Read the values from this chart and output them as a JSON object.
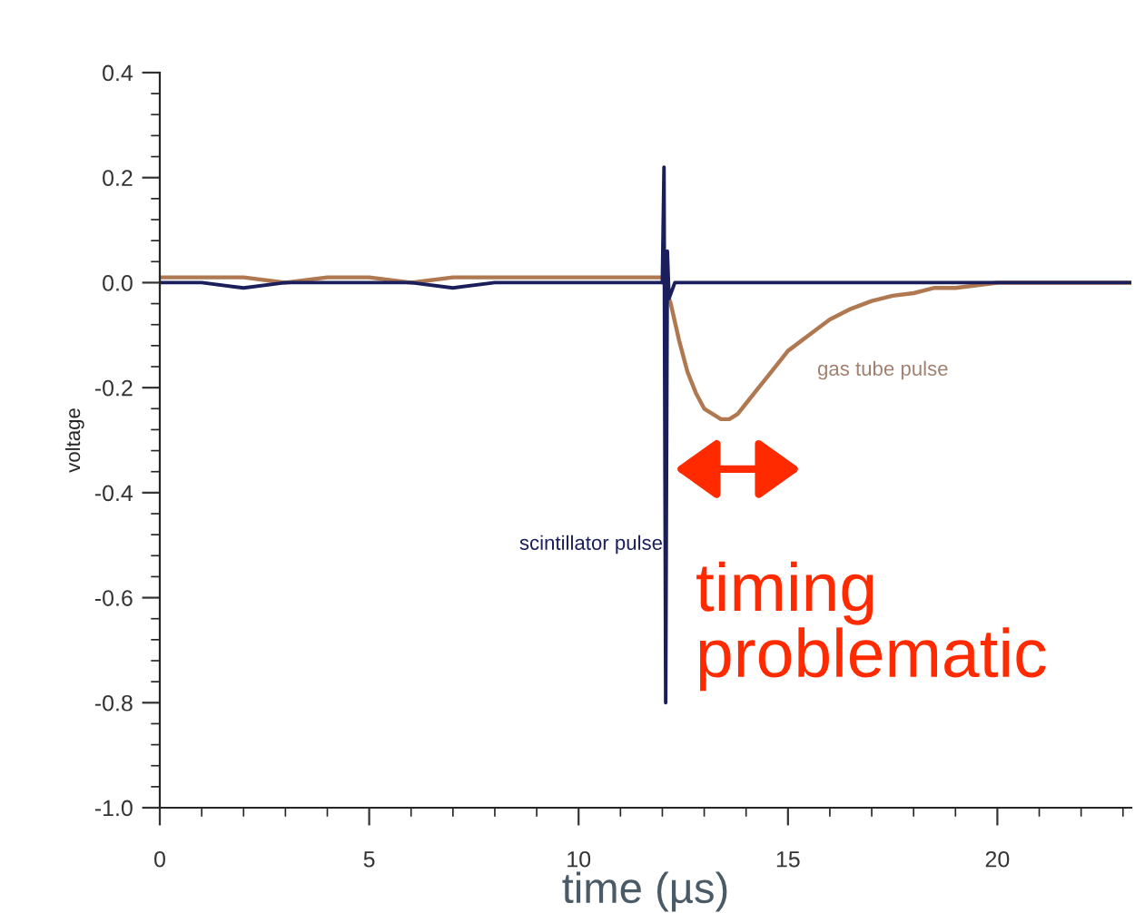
{
  "chart_data": {
    "type": "line",
    "xlabel": "time (µs)",
    "ylabel": "voltage",
    "xlim": [
      0,
      23.2
    ],
    "ylim": [
      -1.0,
      0.4
    ],
    "xticks": [
      0,
      5,
      10,
      15,
      20
    ],
    "yticks": [
      {
        "value": -1.0,
        "label": "-1.0"
      },
      {
        "value": -0.8,
        "label": "-0.8"
      },
      {
        "value": -0.6,
        "label": "-0.6"
      },
      {
        "value": -0.4,
        "label": "-0.4"
      },
      {
        "value": -0.2,
        "label": "-0.2"
      },
      {
        "value": 0.0,
        "label": "0.0"
      },
      {
        "value": 0.2,
        "label": "0.2"
      },
      {
        "value": 0.4,
        "label": "0.4"
      }
    ],
    "grid": false,
    "legend": false,
    "marker": "none",
    "line_style": "solid",
    "series": [
      {
        "color": "#b07850",
        "x": [
          0,
          1,
          2,
          3,
          4,
          5,
          6,
          7,
          8,
          9,
          10,
          11,
          12.0,
          12.2,
          12.4,
          12.6,
          12.8,
          13.0,
          13.2,
          13.4,
          13.6,
          13.8,
          14.0,
          14.3,
          14.6,
          15.0,
          15.5,
          16.0,
          16.5,
          17.0,
          17.5,
          18.0,
          18.5,
          19.0,
          20.0,
          21.0,
          22.0,
          23.2
        ],
        "values": [
          0.01,
          0.01,
          0.01,
          0.0,
          0.01,
          0.01,
          0.0,
          0.01,
          0.01,
          0.01,
          0.01,
          0.01,
          0.01,
          -0.04,
          -0.11,
          -0.17,
          -0.21,
          -0.24,
          -0.25,
          -0.26,
          -0.26,
          -0.25,
          -0.23,
          -0.2,
          -0.17,
          -0.13,
          -0.1,
          -0.07,
          -0.05,
          -0.035,
          -0.025,
          -0.02,
          -0.01,
          -0.01,
          0.0,
          0.0,
          0.0,
          0.0
        ]
      },
      {
        "color": "#1a1f5c",
        "x": [
          0,
          1,
          2,
          3,
          4,
          5,
          6,
          7,
          8,
          9,
          10,
          11,
          12.0,
          12.04,
          12.08,
          12.12,
          12.16,
          12.3,
          13,
          14,
          15,
          16,
          17,
          18,
          19,
          20,
          21,
          22,
          23.2
        ],
        "values": [
          0.0,
          0.0,
          -0.01,
          0.0,
          0.0,
          0.0,
          0.0,
          -0.01,
          0.0,
          0.0,
          0.0,
          0.0,
          0.0,
          0.22,
          -0.8,
          0.06,
          -0.03,
          0.0,
          0.0,
          0.0,
          0.0,
          0.0,
          0.0,
          0.0,
          0.0,
          0.0,
          0.0,
          0.0,
          0.0
        ]
      }
    ],
    "annotations": [
      "gas tube pulse",
      "scintillator pulse",
      "timing problematic"
    ]
  }
}
